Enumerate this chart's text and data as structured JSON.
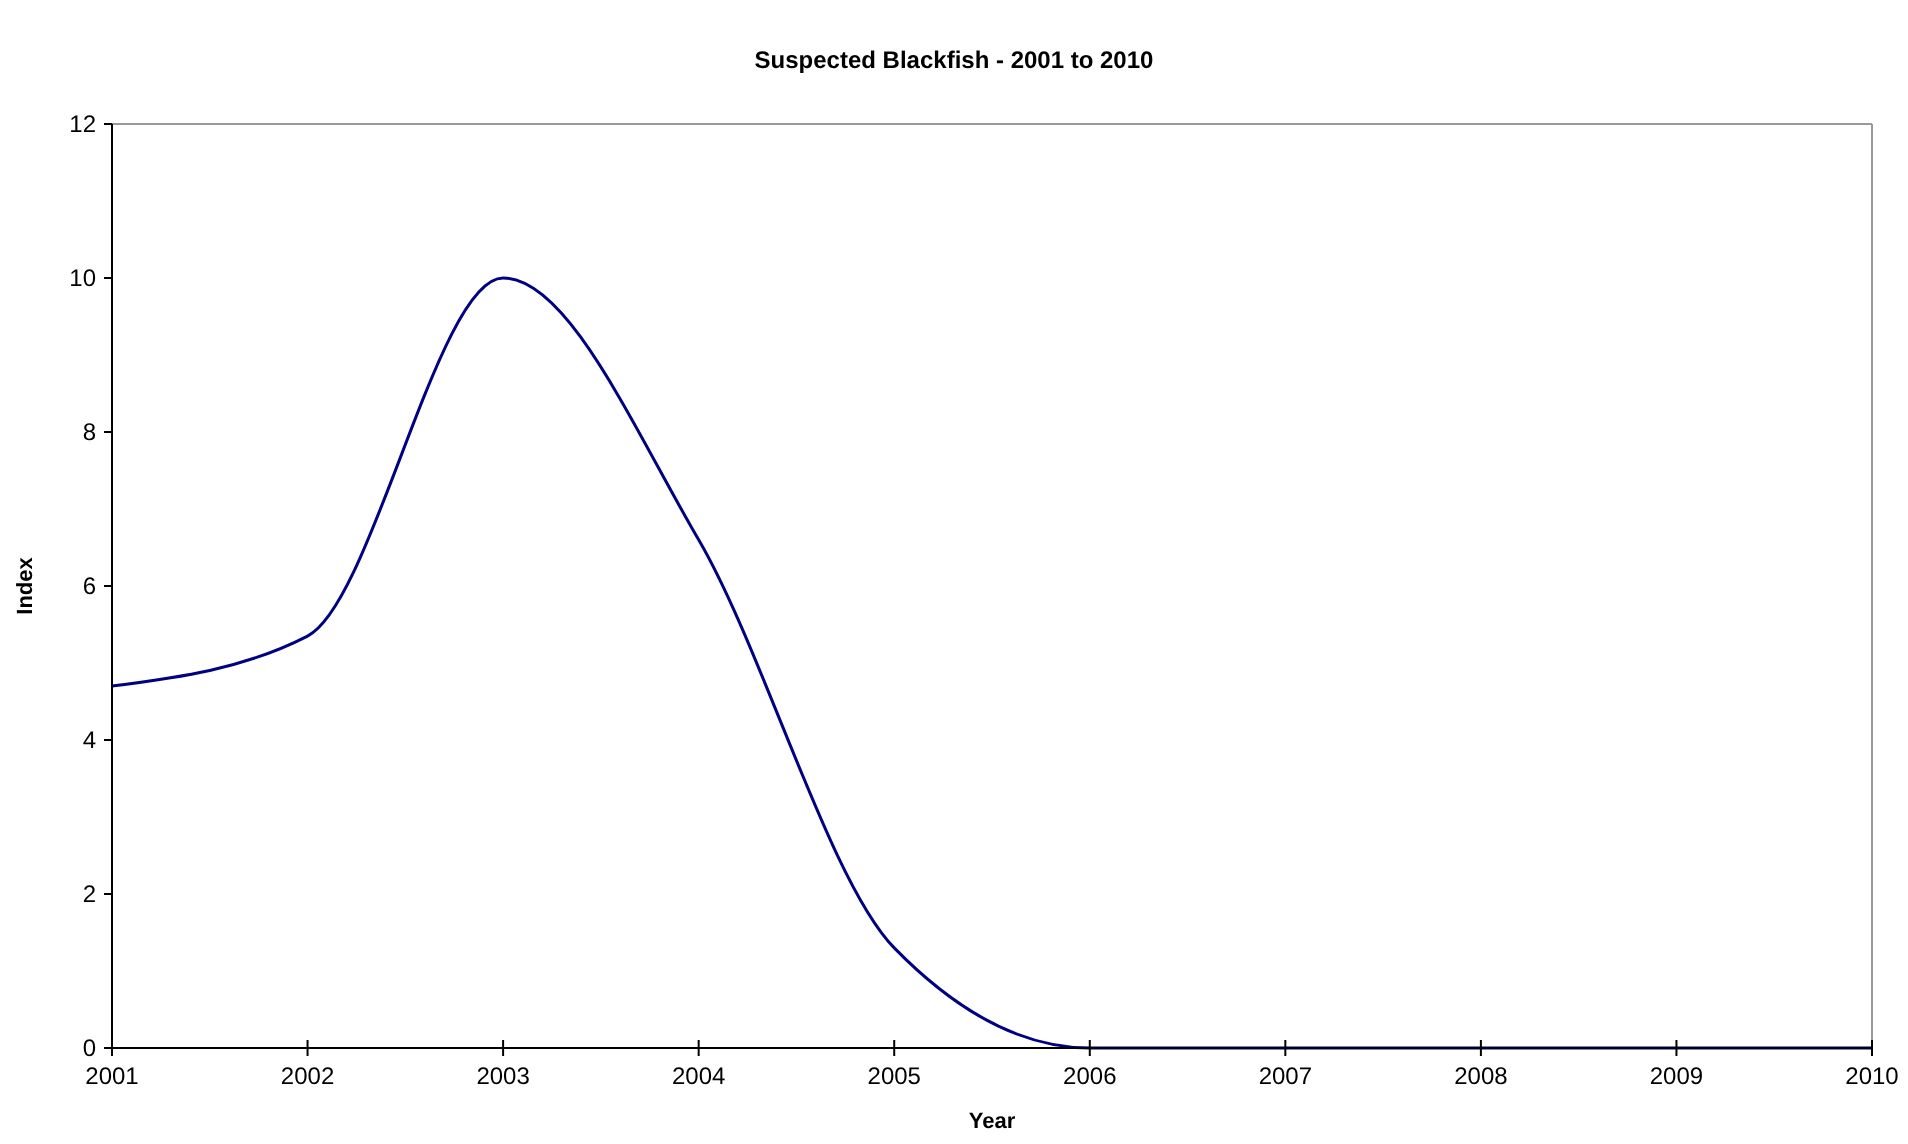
{
  "chart_data": {
    "type": "line",
    "title": "Suspected Blackfish - 2001 to 2010",
    "xlabel": "Year",
    "ylabel": "Index",
    "categories": [
      "2001",
      "2002",
      "2003",
      "2004",
      "2005",
      "2006",
      "2007",
      "2008",
      "2009",
      "2010"
    ],
    "series": [
      {
        "color": "#000080",
        "values": [
          4.7,
          5.35,
          10,
          6.6,
          1.3,
          0,
          0,
          0,
          0,
          0
        ]
      }
    ],
    "ylim": [
      0,
      12
    ],
    "yticks": [
      0,
      2,
      4,
      6,
      8,
      10,
      12
    ],
    "grid": false,
    "marker": "none",
    "line_style": "solid"
  }
}
